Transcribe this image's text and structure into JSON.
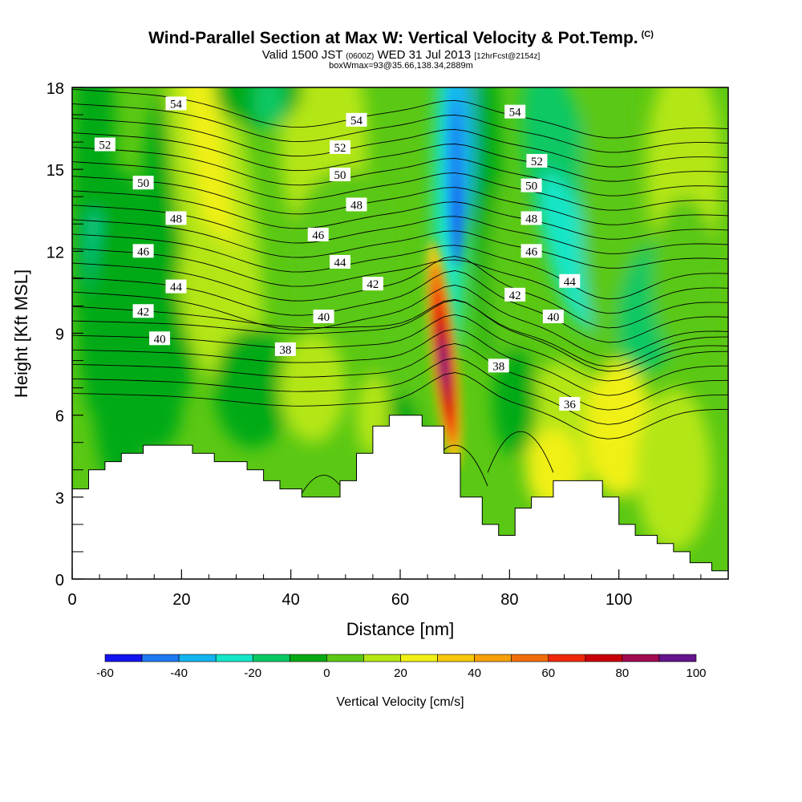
{
  "header": {
    "title": "Wind-Parallel Section at Max W: Vertical Velocity & Pot.Temp.",
    "title_mark": "(C)",
    "line2_a": "Valid 1500 JST",
    "line2_b": "(0600Z)",
    "line2_c": "WED 31 Jul 2013",
    "line2_d": "[12hrFcst@2154z]",
    "line3": "boxWmax=93@35.66,138.34,2889m"
  },
  "chart_data": {
    "type": "heatmap",
    "xlabel": "Distance [nm]",
    "ylabel": "Height [Kft MSL]",
    "xlim": [
      0,
      120
    ],
    "ylim": [
      0,
      18
    ],
    "x_ticks": [
      0,
      20,
      40,
      60,
      80,
      100
    ],
    "y_ticks": [
      0,
      3,
      6,
      9,
      12,
      15,
      18
    ],
    "colorbar": {
      "title": "Vertical Velocity [cm/s]",
      "levels": [
        -60,
        -50,
        -40,
        -30,
        -20,
        -10,
        0,
        10,
        20,
        30,
        40,
        50,
        60,
        70,
        80,
        90,
        100
      ],
      "tick_labels": [
        "-60",
        "-40",
        "-20",
        "0",
        "20",
        "40",
        "60",
        "80",
        "100"
      ],
      "tick_values": [
        -60,
        -40,
        -20,
        0,
        20,
        40,
        60,
        80,
        100
      ],
      "colors": [
        "#1414f0",
        "#1e78f0",
        "#14b4f0",
        "#14e6c8",
        "#0ac864",
        "#06aa14",
        "#5ac814",
        "#b4e614",
        "#f0f014",
        "#f5c80a",
        "#f5a00a",
        "#f06e0a",
        "#f0280a",
        "#c8000a",
        "#a00a50",
        "#64148c"
      ]
    },
    "terrain": [
      [
        0,
        3.3
      ],
      [
        3,
        3.3
      ],
      [
        3,
        4.0
      ],
      [
        6,
        4.0
      ],
      [
        6,
        4.3
      ],
      [
        9,
        4.3
      ],
      [
        9,
        4.6
      ],
      [
        13,
        4.6
      ],
      [
        13,
        4.9
      ],
      [
        22,
        4.9
      ],
      [
        22,
        4.6
      ],
      [
        26,
        4.6
      ],
      [
        26,
        4.3
      ],
      [
        32,
        4.3
      ],
      [
        32,
        4.0
      ],
      [
        35,
        4.0
      ],
      [
        35,
        3.6
      ],
      [
        38,
        3.6
      ],
      [
        38,
        3.3
      ],
      [
        42,
        3.3
      ],
      [
        42,
        3.0
      ],
      [
        49,
        3.0
      ],
      [
        49,
        3.6
      ],
      [
        52,
        3.6
      ],
      [
        52,
        4.6
      ],
      [
        55,
        4.6
      ],
      [
        55,
        5.6
      ],
      [
        58,
        5.6
      ],
      [
        58,
        6.0
      ],
      [
        64,
        6.0
      ],
      [
        64,
        5.6
      ],
      [
        68,
        5.6
      ],
      [
        68,
        4.6
      ],
      [
        71,
        4.6
      ],
      [
        71,
        3.0
      ],
      [
        75,
        3.0
      ],
      [
        75,
        2.0
      ],
      [
        78,
        2.0
      ],
      [
        78,
        1.6
      ],
      [
        81,
        1.6
      ],
      [
        81,
        2.6
      ],
      [
        84,
        2.6
      ],
      [
        84,
        3.0
      ],
      [
        88,
        3.0
      ],
      [
        88,
        3.6
      ],
      [
        97,
        3.6
      ],
      [
        97,
        3.0
      ],
      [
        100,
        3.0
      ],
      [
        100,
        2.0
      ],
      [
        103,
        2.0
      ],
      [
        103,
        1.6
      ],
      [
        107,
        1.6
      ],
      [
        107,
        1.3
      ],
      [
        110,
        1.3
      ],
      [
        110,
        1.0
      ],
      [
        113,
        1.0
      ],
      [
        113,
        0.6
      ],
      [
        117,
        0.6
      ],
      [
        117,
        0.3
      ],
      [
        120,
        0.3
      ]
    ],
    "velocity_features": [
      {
        "x": 68,
        "y": 8,
        "value": 93
      },
      {
        "x": 70,
        "y": 14,
        "value": -45
      },
      {
        "x": 25,
        "y": 15,
        "value": 25
      },
      {
        "x": 100,
        "y": 5.5,
        "value": 35
      },
      {
        "x": 92,
        "y": 13,
        "value": -25
      }
    ],
    "isentrope_labels": [
      {
        "text": "54",
        "x": 19,
        "y": 17.4
      },
      {
        "text": "52",
        "x": 6,
        "y": 15.9
      },
      {
        "text": "50",
        "x": 13,
        "y": 14.5
      },
      {
        "text": "48",
        "x": 19,
        "y": 13.2
      },
      {
        "text": "46",
        "x": 13,
        "y": 12.0
      },
      {
        "text": "44",
        "x": 19,
        "y": 10.7
      },
      {
        "text": "42",
        "x": 13,
        "y": 9.8
      },
      {
        "text": "40",
        "x": 16,
        "y": 8.8
      },
      {
        "text": "54",
        "x": 52,
        "y": 16.8
      },
      {
        "text": "52",
        "x": 49,
        "y": 15.8
      },
      {
        "text": "50",
        "x": 49,
        "y": 14.8
      },
      {
        "text": "48",
        "x": 52,
        "y": 13.7
      },
      {
        "text": "46",
        "x": 45,
        "y": 12.6
      },
      {
        "text": "44",
        "x": 49,
        "y": 11.6
      },
      {
        "text": "42",
        "x": 55,
        "y": 10.8
      },
      {
        "text": "40",
        "x": 46,
        "y": 9.6
      },
      {
        "text": "38",
        "x": 39,
        "y": 8.4
      },
      {
        "text": "54",
        "x": 81,
        "y": 17.1
      },
      {
        "text": "52",
        "x": 85,
        "y": 15.3
      },
      {
        "text": "50",
        "x": 84,
        "y": 14.4
      },
      {
        "text": "48",
        "x": 84,
        "y": 13.2
      },
      {
        "text": "46",
        "x": 84,
        "y": 12.0
      },
      {
        "text": "44",
        "x": 91,
        "y": 10.9
      },
      {
        "text": "42",
        "x": 81,
        "y": 10.4
      },
      {
        "text": "40",
        "x": 88,
        "y": 9.6
      },
      {
        "text": "38",
        "x": 78,
        "y": 7.8
      },
      {
        "text": "36",
        "x": 91,
        "y": 6.4
      }
    ]
  }
}
